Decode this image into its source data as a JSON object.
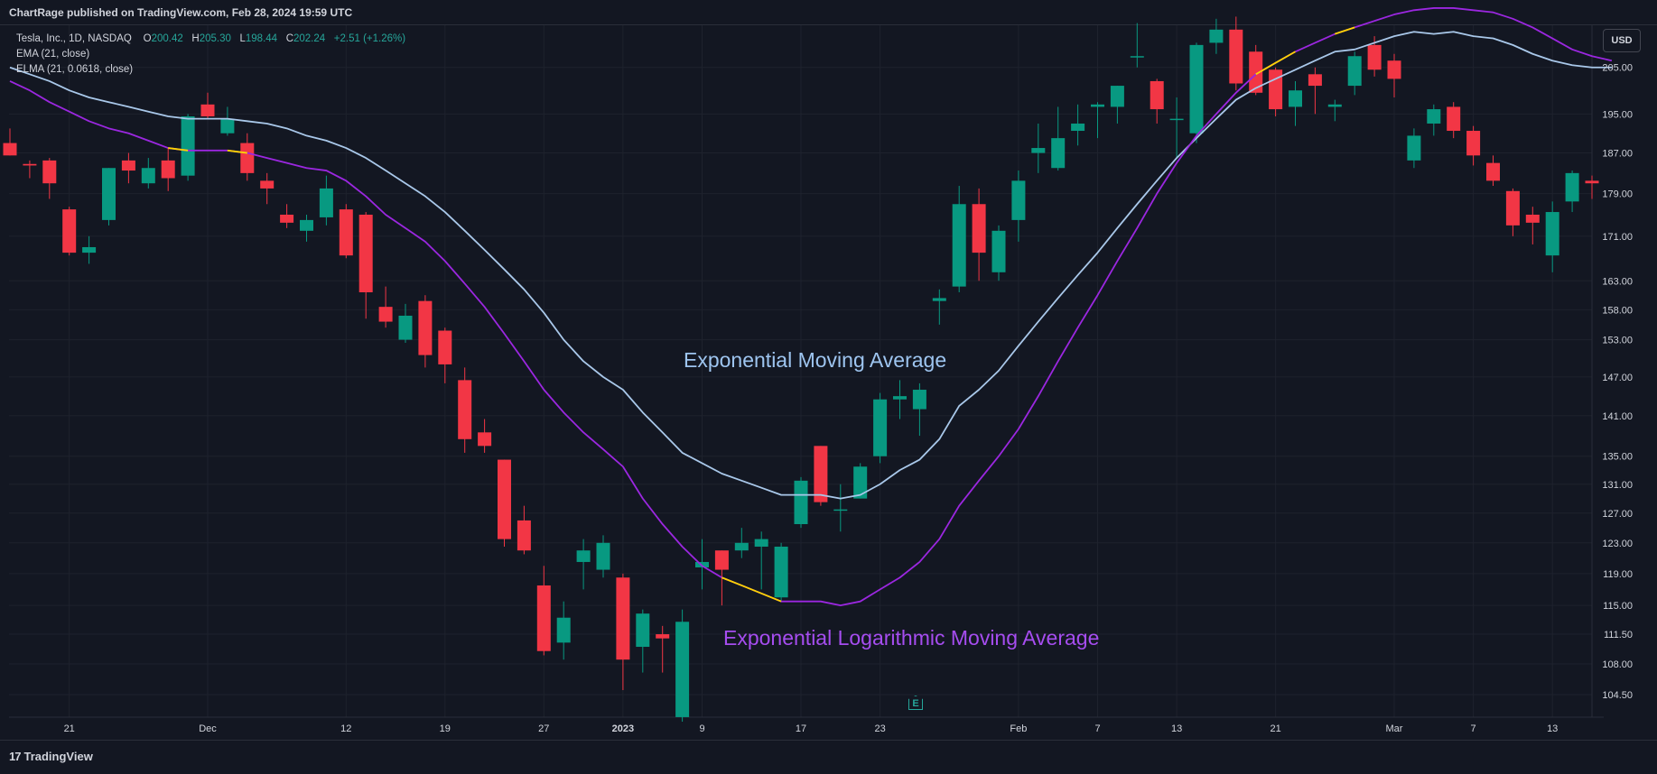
{
  "header": {
    "published": "ChartRage published on TradingView.com, Feb 28, 2024 19:59 UTC"
  },
  "legend": {
    "symbol": "Tesla, Inc., 1D, NASDAQ",
    "o_label": "O",
    "o_value": "200.42",
    "h_label": "H",
    "h_value": "205.30",
    "l_label": "L",
    "l_value": "198.44",
    "c_label": "C",
    "c_value": "202.24",
    "change": "+2.51 (+1.26%)",
    "ema_label": "EMA (21, close)",
    "elma_label": "ELMA (21, 0.0618, close)"
  },
  "currency_button": "USD",
  "brand": "TradingView",
  "brand_icon": "tradingview-logo-icon",
  "earnings_marker": "E",
  "annotations": {
    "ema": "Exponential Moving Average",
    "elma": "Exponential Logarithmic Moving Average"
  },
  "colors": {
    "background": "#131722",
    "grid": "#1e222d",
    "up": "#089981",
    "down": "#f23645",
    "ema": "#a9c8ea",
    "elma": "#9b27e0",
    "elma_highlight": "#ffd400",
    "text": "#d1d4dc"
  },
  "chart_data": {
    "type": "candlestick",
    "title": "Tesla, Inc., 1D, NASDAQ",
    "y_scale": "log",
    "ylim": [
      101.5,
      214.5
    ],
    "y_ticks": [
      "205.00",
      "195.00",
      "187.00",
      "179.00",
      "171.00",
      "163.00",
      "158.00",
      "153.00",
      "147.00",
      "141.00",
      "135.00",
      "131.00",
      "127.00",
      "123.00",
      "119.00",
      "115.00",
      "111.50",
      "108.00",
      "104.50"
    ],
    "x_ticks": [
      {
        "label": "21",
        "index": 3
      },
      {
        "label": "Dec",
        "index": 10
      },
      {
        "label": "12",
        "index": 17
      },
      {
        "label": "19",
        "index": 22
      },
      {
        "label": "27",
        "index": 27
      },
      {
        "label": "2023",
        "index": 31
      },
      {
        "label": "9",
        "index": 35
      },
      {
        "label": "17",
        "index": 40
      },
      {
        "label": "23",
        "index": 44
      },
      {
        "label": "Feb",
        "index": 51
      },
      {
        "label": "7",
        "index": 55
      },
      {
        "label": "13",
        "index": 59
      },
      {
        "label": "21",
        "index": 64
      },
      {
        "label": "Mar",
        "index": 70
      },
      {
        "label": "7",
        "index": 74
      },
      {
        "label": "13",
        "index": 78
      }
    ],
    "candles": [
      {
        "o": 189.0,
        "h": 192.0,
        "l": 186.5,
        "c": 186.5
      },
      {
        "o": 184.8,
        "h": 185.5,
        "l": 182.0,
        "c": 184.5
      },
      {
        "o": 185.5,
        "h": 186.0,
        "l": 178.0,
        "c": 181.0
      },
      {
        "o": 176.0,
        "h": 176.5,
        "l": 167.5,
        "c": 168.0
      },
      {
        "o": 168.0,
        "h": 171.0,
        "l": 166.0,
        "c": 169.0
      },
      {
        "o": 174.0,
        "h": 184.0,
        "l": 173.0,
        "c": 184.0
      },
      {
        "o": 185.5,
        "h": 187.0,
        "l": 181.0,
        "c": 183.5
      },
      {
        "o": 181.0,
        "h": 186.0,
        "l": 180.0,
        "c": 184.0
      },
      {
        "o": 185.5,
        "h": 188.0,
        "l": 179.5,
        "c": 182.0
      },
      {
        "o": 182.5,
        "h": 195.0,
        "l": 181.5,
        "c": 194.5
      },
      {
        "o": 197.0,
        "h": 199.5,
        "l": 194.0,
        "c": 194.5
      },
      {
        "o": 191.0,
        "h": 196.5,
        "l": 190.5,
        "c": 194.0
      },
      {
        "o": 189.0,
        "h": 191.0,
        "l": 181.5,
        "c": 183.0
      },
      {
        "o": 181.5,
        "h": 183.0,
        "l": 177.0,
        "c": 180.0
      },
      {
        "o": 175.0,
        "h": 177.0,
        "l": 172.5,
        "c": 173.5
      },
      {
        "o": 172.0,
        "h": 175.0,
        "l": 170.0,
        "c": 174.0
      },
      {
        "o": 174.5,
        "h": 182.5,
        "l": 173.0,
        "c": 180.0
      },
      {
        "o": 176.0,
        "h": 177.0,
        "l": 167.0,
        "c": 167.5
      },
      {
        "o": 175.0,
        "h": 175.5,
        "l": 156.5,
        "c": 161.0
      },
      {
        "o": 158.5,
        "h": 162.0,
        "l": 155.0,
        "c": 156.0
      },
      {
        "o": 153.0,
        "h": 159.0,
        "l": 152.5,
        "c": 157.0
      },
      {
        "o": 159.5,
        "h": 160.5,
        "l": 148.5,
        "c": 150.5
      },
      {
        "o": 154.5,
        "h": 155.0,
        "l": 146.0,
        "c": 149.0
      },
      {
        "o": 146.5,
        "h": 148.5,
        "l": 135.5,
        "c": 137.5
      },
      {
        "o": 138.5,
        "h": 140.5,
        "l": 135.5,
        "c": 136.5
      },
      {
        "o": 134.5,
        "h": 134.5,
        "l": 122.5,
        "c": 123.5
      },
      {
        "o": 126.0,
        "h": 128.0,
        "l": 121.5,
        "c": 122.0
      },
      {
        "o": 117.5,
        "h": 120.0,
        "l": 109.0,
        "c": 109.5
      },
      {
        "o": 110.5,
        "h": 115.5,
        "l": 108.5,
        "c": 113.5
      },
      {
        "o": 120.5,
        "h": 123.5,
        "l": 117.0,
        "c": 122.0
      },
      {
        "o": 119.5,
        "h": 124.0,
        "l": 118.5,
        "c": 123.0
      },
      {
        "o": 118.5,
        "h": 119.0,
        "l": 105.0,
        "c": 108.5
      },
      {
        "o": 110.0,
        "h": 114.5,
        "l": 107.0,
        "c": 114.0
      },
      {
        "o": 111.5,
        "h": 112.5,
        "l": 107.0,
        "c": 111.0
      },
      {
        "o": 102.0,
        "h": 114.5,
        "l": 101.5,
        "c": 113.0
      },
      {
        "o": 119.8,
        "h": 123.5,
        "l": 117.0,
        "c": 120.5
      },
      {
        "o": 122.0,
        "h": 122.0,
        "l": 115.0,
        "c": 119.5
      },
      {
        "o": 122.0,
        "h": 125.0,
        "l": 121.0,
        "c": 123.0
      },
      {
        "o": 122.5,
        "h": 124.5,
        "l": 117.0,
        "c": 123.5
      },
      {
        "o": 116.0,
        "h": 123.0,
        "l": 115.5,
        "c": 122.5
      },
      {
        "o": 125.5,
        "h": 132.0,
        "l": 125.0,
        "c": 131.5
      },
      {
        "o": 136.5,
        "h": 136.5,
        "l": 128.0,
        "c": 128.5
      },
      {
        "o": 127.5,
        "h": 131.0,
        "l": 124.5,
        "c": 127.5
      },
      {
        "o": 129.0,
        "h": 134.0,
        "l": 129.0,
        "c": 133.5
      },
      {
        "o": 135.0,
        "h": 144.5,
        "l": 134.0,
        "c": 143.5
      },
      {
        "o": 143.5,
        "h": 146.5,
        "l": 140.5,
        "c": 144.0
      },
      {
        "o": 142.0,
        "h": 146.0,
        "l": 138.0,
        "c": 145.0
      },
      {
        "o": 159.5,
        "h": 161.5,
        "l": 155.5,
        "c": 160.0
      },
      {
        "o": 162.0,
        "h": 180.5,
        "l": 161.0,
        "c": 177.0
      },
      {
        "o": 177.0,
        "h": 180.0,
        "l": 163.0,
        "c": 168.0
      },
      {
        "o": 164.5,
        "h": 173.0,
        "l": 163.0,
        "c": 172.0
      },
      {
        "o": 174.0,
        "h": 183.5,
        "l": 170.0,
        "c": 181.5
      },
      {
        "o": 187.0,
        "h": 193.0,
        "l": 183.0,
        "c": 188.0
      },
      {
        "o": 184.0,
        "h": 196.5,
        "l": 183.5,
        "c": 190.0
      },
      {
        "o": 191.5,
        "h": 197.0,
        "l": 188.5,
        "c": 193.0
      },
      {
        "o": 196.5,
        "h": 197.5,
        "l": 190.0,
        "c": 197.0
      },
      {
        "o": 196.5,
        "h": 201.0,
        "l": 193.0,
        "c": 201.0
      },
      {
        "o": 207.5,
        "h": 215.0,
        "l": 205.0,
        "c": 207.5
      },
      {
        "o": 202.0,
        "h": 202.5,
        "l": 193.0,
        "c": 196.0
      },
      {
        "o": 194.0,
        "h": 198.5,
        "l": 186.0,
        "c": 194.0
      },
      {
        "o": 191.0,
        "h": 210.5,
        "l": 189.0,
        "c": 210.0
      },
      {
        "o": 210.5,
        "h": 216.0,
        "l": 208.0,
        "c": 213.5
      },
      {
        "o": 213.5,
        "h": 216.5,
        "l": 200.0,
        "c": 201.5
      },
      {
        "o": 208.5,
        "h": 210.0,
        "l": 199.0,
        "c": 199.5
      },
      {
        "o": 204.5,
        "h": 205.0,
        "l": 194.5,
        "c": 196.0
      },
      {
        "o": 196.5,
        "h": 202.0,
        "l": 192.5,
        "c": 200.0
      },
      {
        "o": 203.5,
        "h": 205.0,
        "l": 195.0,
        "c": 201.0
      },
      {
        "o": 196.5,
        "h": 198.0,
        "l": 193.5,
        "c": 197.0
      },
      {
        "o": 201.0,
        "h": 208.5,
        "l": 199.0,
        "c": 207.5
      },
      {
        "o": 210.0,
        "h": 212.0,
        "l": 203.0,
        "c": 204.5
      },
      {
        "o": 206.5,
        "h": 208.0,
        "l": 198.5,
        "c": 202.5
      },
      {
        "o": 185.5,
        "h": 192.0,
        "l": 184.0,
        "c": 190.5
      },
      {
        "o": 193.0,
        "h": 197.0,
        "l": 190.5,
        "c": 196.0
      },
      {
        "o": 196.5,
        "h": 197.5,
        "l": 190.0,
        "c": 191.5
      },
      {
        "o": 191.5,
        "h": 192.5,
        "l": 184.5,
        "c": 186.5
      },
      {
        "o": 185.0,
        "h": 186.5,
        "l": 180.5,
        "c": 181.5
      },
      {
        "o": 179.5,
        "h": 180.0,
        "l": 171.0,
        "c": 173.0
      },
      {
        "o": 175.0,
        "h": 176.5,
        "l": 169.5,
        "c": 173.5
      },
      {
        "o": 167.5,
        "h": 177.5,
        "l": 164.5,
        "c": 175.5
      },
      {
        "o": 177.5,
        "h": 183.5,
        "l": 175.5,
        "c": 183.0
      },
      {
        "o": 181.5,
        "h": 182.5,
        "l": 178.0,
        "c": 181.0
      }
    ],
    "series": [
      {
        "name": "EMA (21, close)",
        "values": [
          205.0,
          203.5,
          202.0,
          200.0,
          198.5,
          197.5,
          196.5,
          195.5,
          194.5,
          194.0,
          194.0,
          194.0,
          193.5,
          193.0,
          192.0,
          190.5,
          189.5,
          188.0,
          186.0,
          183.5,
          181.0,
          178.5,
          175.5,
          172.0,
          168.5,
          165.0,
          161.5,
          157.5,
          153.0,
          149.5,
          147.0,
          145.0,
          141.5,
          138.5,
          135.5,
          134.0,
          132.5,
          131.5,
          130.5,
          129.5,
          129.5,
          129.5,
          129.0,
          129.5,
          131.0,
          133.0,
          134.5,
          137.5,
          142.5,
          145.0,
          148.0,
          152.0,
          156.0,
          160.0,
          164.0,
          168.0,
          172.5,
          177.0,
          181.5,
          186.0,
          190.0,
          194.0,
          198.0,
          200.5,
          202.5,
          204.5,
          206.5,
          208.5,
          209.0,
          210.5,
          212.0,
          213.0,
          212.5,
          213.0,
          212.0,
          211.5,
          210.0,
          208.0,
          206.5,
          205.5,
          205.0,
          205.0
        ]
      },
      {
        "name": "ELMA (21, 0.0618, close)",
        "values": [
          202.0,
          200.0,
          197.5,
          195.5,
          193.5,
          192.0,
          191.0,
          189.5,
          188.0,
          187.5,
          187.5,
          187.5,
          187.0,
          186.0,
          185.0,
          184.0,
          183.5,
          181.5,
          178.5,
          175.0,
          172.5,
          170.0,
          166.5,
          162.5,
          158.5,
          154.0,
          149.5,
          145.0,
          141.5,
          138.5,
          136.0,
          133.5,
          129.0,
          125.5,
          122.5,
          120.0,
          118.5,
          117.5,
          116.5,
          115.5,
          115.5,
          115.5,
          115.0,
          115.5,
          117.0,
          118.5,
          120.5,
          123.5,
          128.0,
          131.5,
          135.0,
          139.0,
          144.0,
          149.5,
          155.0,
          160.5,
          166.5,
          172.5,
          179.0,
          185.0,
          190.5,
          195.0,
          199.5,
          203.5,
          206.0,
          208.5,
          210.5,
          212.5,
          214.0,
          215.5,
          217.0,
          218.0,
          218.5,
          218.5,
          218.0,
          217.5,
          216.0,
          214.0,
          211.5,
          209.0,
          207.5,
          206.5
        ]
      }
    ]
  }
}
